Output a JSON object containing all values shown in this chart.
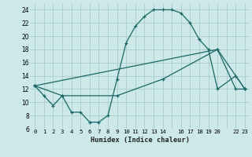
{
  "xlabel": "Humidex (Indice chaleur)",
  "background_color": "#cce8e8",
  "grid_color": "#aacccc",
  "line_color": "#1a6666",
  "xlim": [
    -0.5,
    23.5
  ],
  "ylim": [
    6,
    25
  ],
  "yticks": [
    6,
    8,
    10,
    12,
    14,
    16,
    18,
    20,
    22,
    24
  ],
  "xticks": [
    0,
    1,
    2,
    3,
    4,
    5,
    6,
    7,
    8,
    9,
    10,
    11,
    12,
    13,
    14,
    15,
    16,
    17,
    18,
    19,
    20,
    21,
    22,
    23
  ],
  "xtick_labels": [
    "0",
    "1",
    "2",
    "3",
    "4",
    "5",
    "6",
    "7",
    "8",
    "9",
    "10",
    "11",
    "12",
    "13",
    "14",
    "",
    "16",
    "17",
    "18",
    "19",
    "20",
    "",
    "22",
    "23"
  ],
  "line1_x": [
    0,
    1,
    2,
    3,
    4,
    5,
    6,
    7,
    8,
    9,
    10,
    11,
    12,
    13,
    14,
    15,
    16,
    17,
    18,
    19,
    20,
    22,
    23
  ],
  "line1_y": [
    12.5,
    11,
    9.5,
    11,
    8.5,
    8.5,
    7,
    7,
    8,
    13.5,
    19,
    21.5,
    23,
    24,
    24,
    24,
    23.5,
    22,
    19.5,
    18,
    12,
    14,
    12
  ],
  "line2_x": [
    0,
    3,
    9,
    14,
    20,
    22,
    23
  ],
  "line2_y": [
    12.5,
    11,
    11,
    13.5,
    18,
    12,
    12
  ],
  "line3_x": [
    0,
    20,
    23
  ],
  "line3_y": [
    12.5,
    18,
    12
  ]
}
